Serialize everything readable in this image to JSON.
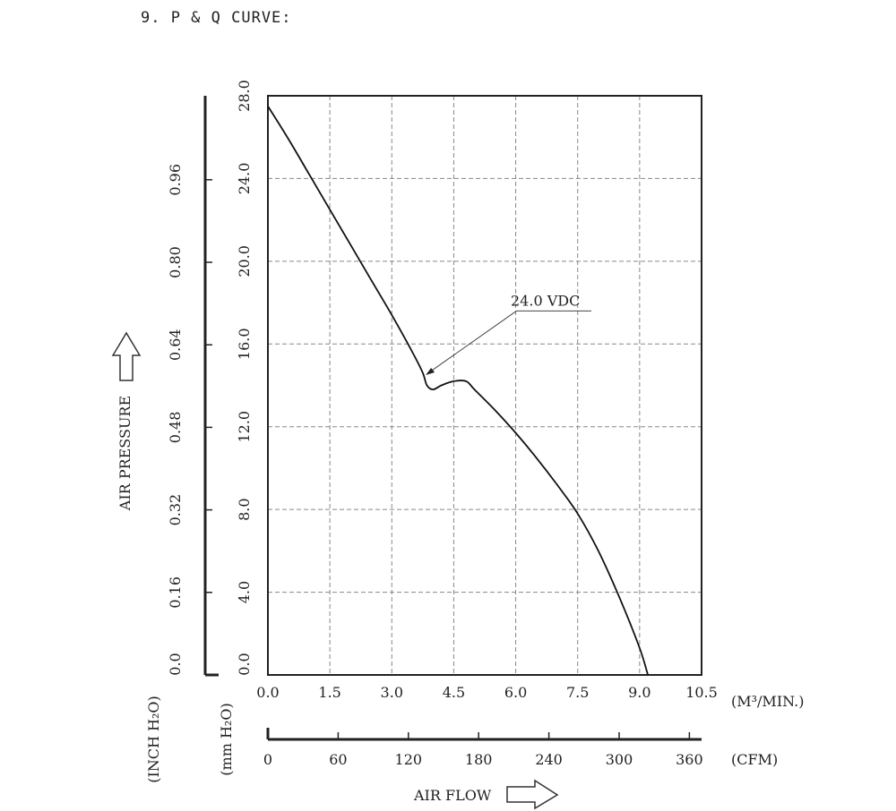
{
  "title": "9. P & Q CURVE:",
  "chart_data": {
    "type": "line",
    "title": "9. P & Q CURVE:",
    "xlabel": "AIR FLOW",
    "ylabel": "AIR PRESSURE",
    "x_unit_primary": "(M³/MIN.)",
    "x_unit_secondary": "(CFM)",
    "y_unit_primary": "(mm H₂O)",
    "y_unit_secondary": "(INCH H₂O)",
    "xlim": [
      0,
      10.5
    ],
    "ylim": [
      0,
      28
    ],
    "grid": true,
    "x_ticks": [
      "0.0",
      "1.5",
      "3.0",
      "4.5",
      "6.0",
      "7.5",
      "9.0",
      "10.5"
    ],
    "y_ticks": [
      "0.0",
      "4.0",
      "8.0",
      "12.0",
      "16.0",
      "20.0",
      "24.0",
      "28.0"
    ],
    "cfm_ticks": [
      "0",
      "60",
      "120",
      "180",
      "240",
      "300",
      "360"
    ],
    "inch_ticks": [
      "0.0",
      "0.16",
      "0.32",
      "0.48",
      "0.64",
      "0.80",
      "0.96"
    ],
    "annotation": "24.0 VDC",
    "series": [
      {
        "name": "24.0 VDC",
        "x": [
          0.0,
          0.5,
          1.0,
          1.5,
          2.0,
          2.5,
          3.0,
          3.5,
          3.75,
          3.85,
          4.0,
          4.2,
          4.5,
          4.8,
          5.0,
          5.5,
          6.0,
          6.5,
          7.0,
          7.5,
          8.0,
          8.5,
          9.0,
          9.2
        ],
        "y": [
          27.5,
          25.9,
          24.2,
          22.5,
          20.8,
          19.1,
          17.4,
          15.6,
          14.6,
          14.0,
          13.8,
          14.0,
          14.2,
          14.2,
          13.8,
          12.8,
          11.7,
          10.5,
          9.2,
          7.8,
          6.0,
          3.8,
          1.3,
          0.0
        ]
      }
    ]
  }
}
